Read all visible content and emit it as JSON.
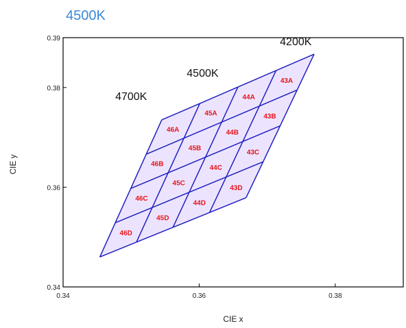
{
  "chart_data": {
    "type": "diagram",
    "title": "4500K",
    "xlabel": "CIE x",
    "ylabel": "CIE y",
    "xlim": [
      0.34,
      0.39
    ],
    "ylim": [
      0.34,
      0.39
    ],
    "x_ticks": [
      {
        "value": 0.34,
        "label": "0.34"
      },
      {
        "value": 0.36,
        "label": "0.36"
      },
      {
        "value": 0.38,
        "label": "0.38"
      }
    ],
    "y_ticks": [
      {
        "value": 0.34,
        "label": "0.34"
      },
      {
        "value": 0.36,
        "label": "0.36"
      },
      {
        "value": 0.38,
        "label": "0.38"
      },
      {
        "value": 0.39,
        "label": "0.39"
      }
    ],
    "grid": false,
    "colors": {
      "title": "#3a8ad8",
      "grid_lines": "#2020c0",
      "bin_labels": "#e8141c",
      "bin_fill": "#ece4ff"
    },
    "bin_grid": {
      "rows": 4,
      "cols": 4,
      "corners": {
        "top_left": [
          0.3545,
          0.3735
        ],
        "top_right": [
          0.3769,
          0.3867
        ],
        "bottom_right": [
          0.3669,
          0.3579
        ],
        "bottom_left": [
          0.3454,
          0.346
        ]
      }
    },
    "cct_labels": [
      {
        "text": "4700K",
        "x": 0.35,
        "y": 0.3775
      },
      {
        "text": "4500K",
        "x": 0.3605,
        "y": 0.3822
      },
      {
        "text": "4200K",
        "x": 0.3742,
        "y": 0.3885
      }
    ],
    "bins": [
      {
        "label": "46A",
        "col": 0,
        "row": 0
      },
      {
        "label": "45A",
        "col": 1,
        "row": 0
      },
      {
        "label": "44A",
        "col": 2,
        "row": 0
      },
      {
        "label": "43A",
        "col": 3,
        "row": 0
      },
      {
        "label": "46B",
        "col": 0,
        "row": 1
      },
      {
        "label": "45B",
        "col": 1,
        "row": 1
      },
      {
        "label": "44B",
        "col": 2,
        "row": 1
      },
      {
        "label": "43B",
        "col": 3,
        "row": 1
      },
      {
        "label": "46C",
        "col": 0,
        "row": 2
      },
      {
        "label": "45C",
        "col": 1,
        "row": 2
      },
      {
        "label": "44C",
        "col": 2,
        "row": 2
      },
      {
        "label": "43C",
        "col": 3,
        "row": 2
      },
      {
        "label": "46D",
        "col": 0,
        "row": 3
      },
      {
        "label": "45D",
        "col": 1,
        "row": 3
      },
      {
        "label": "44D",
        "col": 2,
        "row": 3
      },
      {
        "label": "43D",
        "col": 3,
        "row": 3
      }
    ]
  }
}
